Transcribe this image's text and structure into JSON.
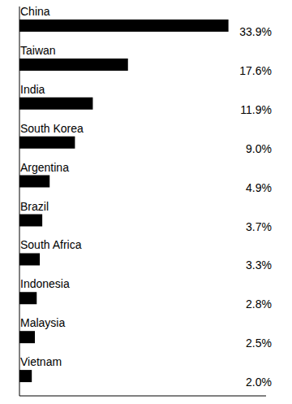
{
  "chart_data": {
    "type": "bar",
    "orientation": "horizontal",
    "categories": [
      "China",
      "Taiwan",
      "India",
      "South Korea",
      "Argentina",
      "Brazil",
      "South Africa",
      "Indonesia",
      "Malaysia",
      "Vietnam"
    ],
    "values": [
      33.9,
      17.6,
      11.9,
      9.0,
      4.9,
      3.7,
      3.3,
      2.8,
      2.5,
      2.0
    ],
    "value_labels": [
      "33.9%",
      "17.6%",
      "11.9%",
      "9.0%",
      "4.9%",
      "3.7%",
      "3.3%",
      "2.8%",
      "2.5%",
      "2.0%"
    ],
    "color": "#000000",
    "xlim": [
      0,
      40
    ],
    "tick_labels": false,
    "grid": false,
    "data_labels": true
  }
}
